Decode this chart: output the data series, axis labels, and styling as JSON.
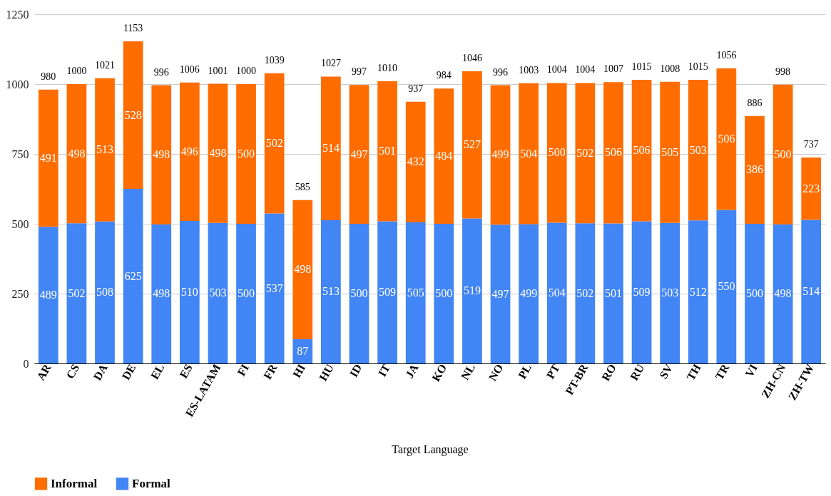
{
  "chart_data": {
    "type": "bar",
    "xlabel": "Target Language",
    "categories": [
      "AR",
      "CS",
      "DA",
      "DE",
      "EL",
      "ES",
      "ES-LATAM",
      "FI",
      "FR",
      "HI",
      "HU",
      "ID",
      "IT",
      "JA",
      "KO",
      "NL",
      "NO",
      "PL",
      "PT",
      "PT-BR",
      "RO",
      "RU",
      "SV",
      "TH",
      "TR",
      "VI",
      "ZH-CN",
      "ZH-TW"
    ],
    "series": [
      {
        "name": "Formal",
        "color": "#4285f4",
        "values": [
          489,
          502,
          508,
          625,
          498,
          510,
          503,
          500,
          537,
          87,
          513,
          500,
          509,
          505,
          500,
          519,
          497,
          499,
          504,
          502,
          501,
          509,
          503,
          512,
          550,
          500,
          498,
          514
        ]
      },
      {
        "name": "Informal",
        "color": "#ff6d01",
        "values": [
          491,
          498,
          513,
          528,
          498,
          496,
          498,
          500,
          502,
          498,
          514,
          497,
          501,
          432,
          484,
          527,
          499,
          504,
          500,
          502,
          506,
          506,
          505,
          503,
          506,
          386,
          500,
          223
        ]
      }
    ],
    "stacked": true,
    "data_labels": true,
    "totals": [
      "980",
      "1000",
      "1021",
      "1153",
      "996",
      "1006",
      "1001",
      "1000",
      "1039",
      "585",
      "1027",
      "997",
      "1010",
      "937",
      "984",
      "1046",
      "996",
      "1003",
      "1004",
      "1004",
      "1007",
      "1015",
      "1008",
      "1015",
      "1056",
      "886",
      "998",
      "737"
    ],
    "ylim": [
      0,
      1250
    ],
    "yticks": [
      0,
      250,
      500,
      750,
      1000,
      1250
    ],
    "grid": "y",
    "legend": "bottom"
  }
}
